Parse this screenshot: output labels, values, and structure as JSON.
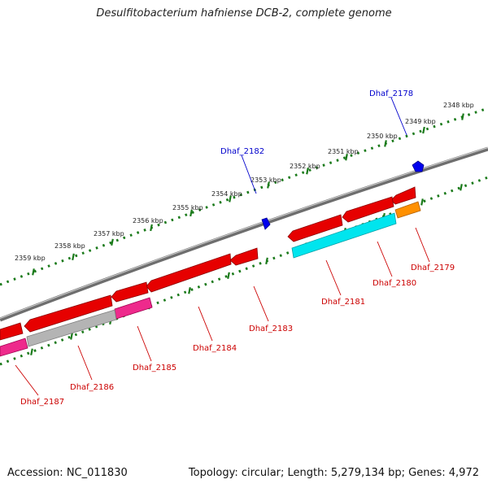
{
  "title": "Desulfitobacterium hafniense DCB-2, complete genome",
  "footer": {
    "accession": "Accession: NC_011830",
    "summary": "Topology: circular; Length: 5,279,134 bp; Genes: 4,972"
  },
  "ruler": [
    "2348 kbp",
    "2349 kbp",
    "2350 kbp",
    "2351 kbp",
    "2352 kbp",
    "2353 kbp",
    "2354 kbp",
    "2355 kbp",
    "2356 kbp",
    "2357 kbp",
    "2358 kbp",
    "2359 kbp"
  ],
  "colors": {
    "red": "#e60000",
    "red_dark": "#a80000",
    "cyan": "#00e5ee",
    "gray": "#b4b4b4",
    "pink": "#ee2a8c",
    "orange": "#ff9000",
    "blue": "#0000ee",
    "dots": "#1a7a1a",
    "backbone": "#7a7a7a"
  },
  "positive_labels": [
    "Dhaf_2178",
    "Dhaf_2182"
  ],
  "negative_labels": [
    "Dhaf_2179",
    "Dhaf_2180",
    "Dhaf_2181",
    "Dhaf_2183",
    "Dhaf_2184",
    "Dhaf_2185",
    "Dhaf_2186",
    "Dhaf_2187"
  ]
}
